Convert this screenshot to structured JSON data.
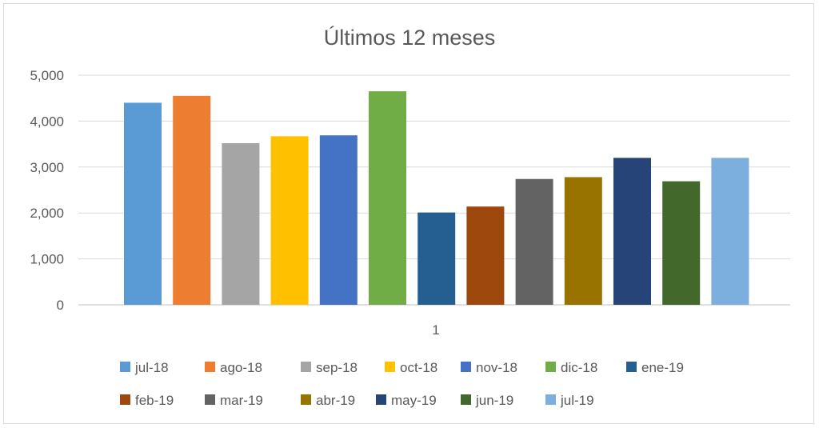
{
  "chart_data": {
    "type": "bar",
    "title": "Últimos 12 meses",
    "categories": [
      "1"
    ],
    "ylim": [
      0,
      5000
    ],
    "yticks": [
      "0",
      "1,000",
      "2,000",
      "3,000",
      "4,000",
      "5,000"
    ],
    "grid": true,
    "legend_position": "bottom",
    "series": [
      {
        "name": "jul-18",
        "values": [
          4400
        ],
        "color": "#5b9bd5"
      },
      {
        "name": "ago-18",
        "values": [
          4550
        ],
        "color": "#ed7d31"
      },
      {
        "name": "sep-18",
        "values": [
          3520
        ],
        "color": "#a5a5a5"
      },
      {
        "name": "oct-18",
        "values": [
          3670
        ],
        "color": "#ffc000"
      },
      {
        "name": "nov-18",
        "values": [
          3690
        ],
        "color": "#4472c4"
      },
      {
        "name": "dic-18",
        "values": [
          4650
        ],
        "color": "#70ad47"
      },
      {
        "name": "ene-19",
        "values": [
          2010
        ],
        "color": "#255e91"
      },
      {
        "name": "feb-19",
        "values": [
          2140
        ],
        "color": "#9e480e"
      },
      {
        "name": "mar-19",
        "values": [
          2740
        ],
        "color": "#636363"
      },
      {
        "name": "abr-19",
        "values": [
          2780
        ],
        "color": "#997300"
      },
      {
        "name": "may-19",
        "values": [
          3200
        ],
        "color": "#264478"
      },
      {
        "name": "jun-19",
        "values": [
          2690
        ],
        "color": "#43682b"
      },
      {
        "name": "jul-19",
        "values": [
          3200
        ],
        "color": "#7cafdd"
      }
    ]
  }
}
